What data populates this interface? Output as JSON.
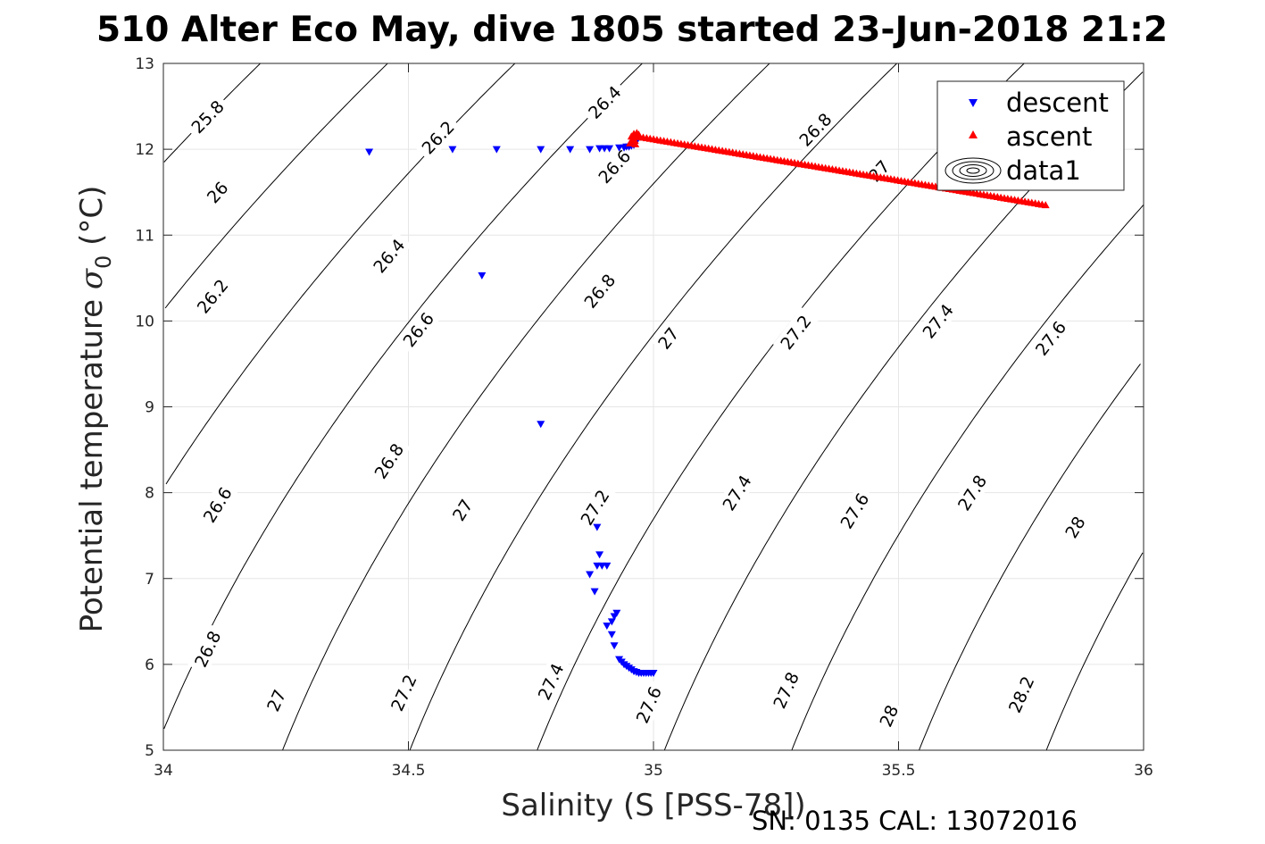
{
  "chart_data": {
    "type": "scatter",
    "title": "510 Alter Eco May, dive 1805 started 23-Jun-2018 21:2",
    "xlabel": "Salinity (S [PSS-78])",
    "ylabel_main": "Potential temperature ",
    "ylabel_symbol": "σ",
    "ylabel_sub": "0",
    "ylabel_unit": " (°C)",
    "xlim": [
      34,
      36
    ],
    "ylim": [
      5,
      13
    ],
    "xticks": [
      34,
      34.5,
      35,
      35.5,
      36
    ],
    "xtick_labels": [
      "34",
      "34.5",
      "35",
      "35.5",
      "36"
    ],
    "yticks": [
      5,
      6,
      7,
      8,
      9,
      10,
      11,
      12,
      13
    ],
    "ytick_labels": [
      "5",
      "6",
      "7",
      "8",
      "9",
      "10",
      "11",
      "12",
      "13"
    ],
    "grid": true,
    "legend_position": "top-right",
    "series": [
      {
        "name": "descent",
        "marker": "triangle-down",
        "color": "#0000ff",
        "points": [
          [
            34.42,
            11.97
          ],
          [
            34.59,
            12.0
          ],
          [
            34.68,
            12.0
          ],
          [
            34.77,
            12.0
          ],
          [
            34.83,
            12.0
          ],
          [
            34.87,
            12.0
          ],
          [
            34.89,
            12.01
          ],
          [
            34.9,
            12.01
          ],
          [
            34.91,
            12.01
          ],
          [
            34.93,
            12.02
          ],
          [
            34.94,
            12.02
          ],
          [
            34.945,
            12.03
          ],
          [
            34.95,
            12.03
          ],
          [
            34.955,
            12.04
          ],
          [
            34.96,
            12.05
          ],
          [
            34.964,
            12.08
          ],
          [
            34.965,
            12.12
          ],
          [
            34.65,
            10.53
          ],
          [
            34.77,
            8.8
          ],
          [
            34.885,
            7.6
          ],
          [
            34.89,
            7.28
          ],
          [
            34.895,
            7.15
          ],
          [
            34.905,
            7.15
          ],
          [
            34.885,
            7.15
          ],
          [
            34.87,
            7.05
          ],
          [
            34.88,
            6.85
          ],
          [
            34.925,
            6.6
          ],
          [
            34.92,
            6.56
          ],
          [
            34.915,
            6.5
          ],
          [
            34.905,
            6.45
          ],
          [
            34.915,
            6.35
          ],
          [
            34.92,
            6.22
          ],
          [
            34.93,
            6.06
          ],
          [
            34.935,
            6.03
          ],
          [
            34.94,
            6.0
          ],
          [
            34.945,
            5.98
          ],
          [
            34.95,
            5.96
          ],
          [
            34.955,
            5.94
          ],
          [
            34.96,
            5.92
          ],
          [
            34.965,
            5.91
          ],
          [
            34.97,
            5.9
          ],
          [
            34.975,
            5.9
          ],
          [
            34.98,
            5.9
          ],
          [
            34.985,
            5.9
          ],
          [
            34.99,
            5.9
          ],
          [
            34.995,
            5.9
          ],
          [
            35.0,
            5.9
          ]
        ]
      },
      {
        "name": "ascent",
        "marker": "triangle-up",
        "color": "#ff0000",
        "line_from": [
          34.965,
          12.15
        ],
        "line_to": [
          35.8,
          11.35
        ],
        "line_count": 120,
        "cluster": [
          [
            34.955,
            12.15
          ],
          [
            34.96,
            12.18
          ],
          [
            34.958,
            12.12
          ],
          [
            34.962,
            12.1
          ],
          [
            34.966,
            12.19
          ],
          [
            34.97,
            12.17
          ],
          [
            34.952,
            12.07
          ],
          [
            34.963,
            12.06
          ]
        ]
      },
      {
        "name": "data1",
        "marker": "contour",
        "color": "#000000"
      }
    ],
    "contour_levels": [
      25.8,
      26.0,
      26.2,
      26.4,
      26.6,
      26.8,
      27.0,
      27.2,
      27.4,
      27.6,
      27.8,
      28.0,
      28.2
    ],
    "contour_labels": [
      {
        "text": "25.8",
        "s": 34.09,
        "t": 12.38
      },
      {
        "text": "26",
        "s": 34.11,
        "t": 11.5
      },
      {
        "text": "26.2",
        "s": 34.56,
        "t": 12.14
      },
      {
        "text": "26.2",
        "s": 34.1,
        "t": 10.29
      },
      {
        "text": "26.4",
        "s": 34.9,
        "t": 12.55
      },
      {
        "text": "26.4",
        "s": 34.46,
        "t": 10.76
      },
      {
        "text": "26.6",
        "s": 34.92,
        "t": 11.8
      },
      {
        "text": "26.6",
        "s": 34.52,
        "t": 9.9
      },
      {
        "text": "26.6",
        "s": 34.11,
        "t": 7.86
      },
      {
        "text": "26.8",
        "s": 35.33,
        "t": 12.23
      },
      {
        "text": "26.8",
        "s": 34.89,
        "t": 10.35
      },
      {
        "text": "26.8",
        "s": 34.46,
        "t": 8.37
      },
      {
        "text": "26.8",
        "s": 34.09,
        "t": 6.18
      },
      {
        "text": "27",
        "s": 35.46,
        "t": 11.75
      },
      {
        "text": "27",
        "s": 35.03,
        "t": 9.8
      },
      {
        "text": "27",
        "s": 34.61,
        "t": 7.8
      },
      {
        "text": "27",
        "s": 34.23,
        "t": 5.58
      },
      {
        "text": "27.2",
        "s": 35.29,
        "t": 9.87
      },
      {
        "text": "27.2",
        "s": 34.88,
        "t": 7.83
      },
      {
        "text": "27.2",
        "s": 34.49,
        "t": 5.67
      },
      {
        "text": "27.4",
        "s": 35.58,
        "t": 10.0
      },
      {
        "text": "27.4",
        "s": 35.17,
        "t": 8.0
      },
      {
        "text": "27.4",
        "s": 34.79,
        "t": 5.8
      },
      {
        "text": "27.6",
        "s": 35.81,
        "t": 9.8
      },
      {
        "text": "27.6",
        "s": 35.41,
        "t": 7.79
      },
      {
        "text": "27.6",
        "s": 34.99,
        "t": 5.53
      },
      {
        "text": "27.8",
        "s": 35.65,
        "t": 8.0
      },
      {
        "text": "27.8",
        "s": 35.27,
        "t": 5.7
      },
      {
        "text": "28",
        "s": 35.86,
        "t": 7.6
      },
      {
        "text": "28",
        "s": 35.48,
        "t": 5.4
      },
      {
        "text": "28.2",
        "s": 35.75,
        "t": 5.65
      }
    ]
  },
  "legend": {
    "items": [
      "descent",
      "ascent",
      "data1"
    ]
  },
  "footer": {
    "serial": "SN: 0135  CAL: 13072016"
  }
}
